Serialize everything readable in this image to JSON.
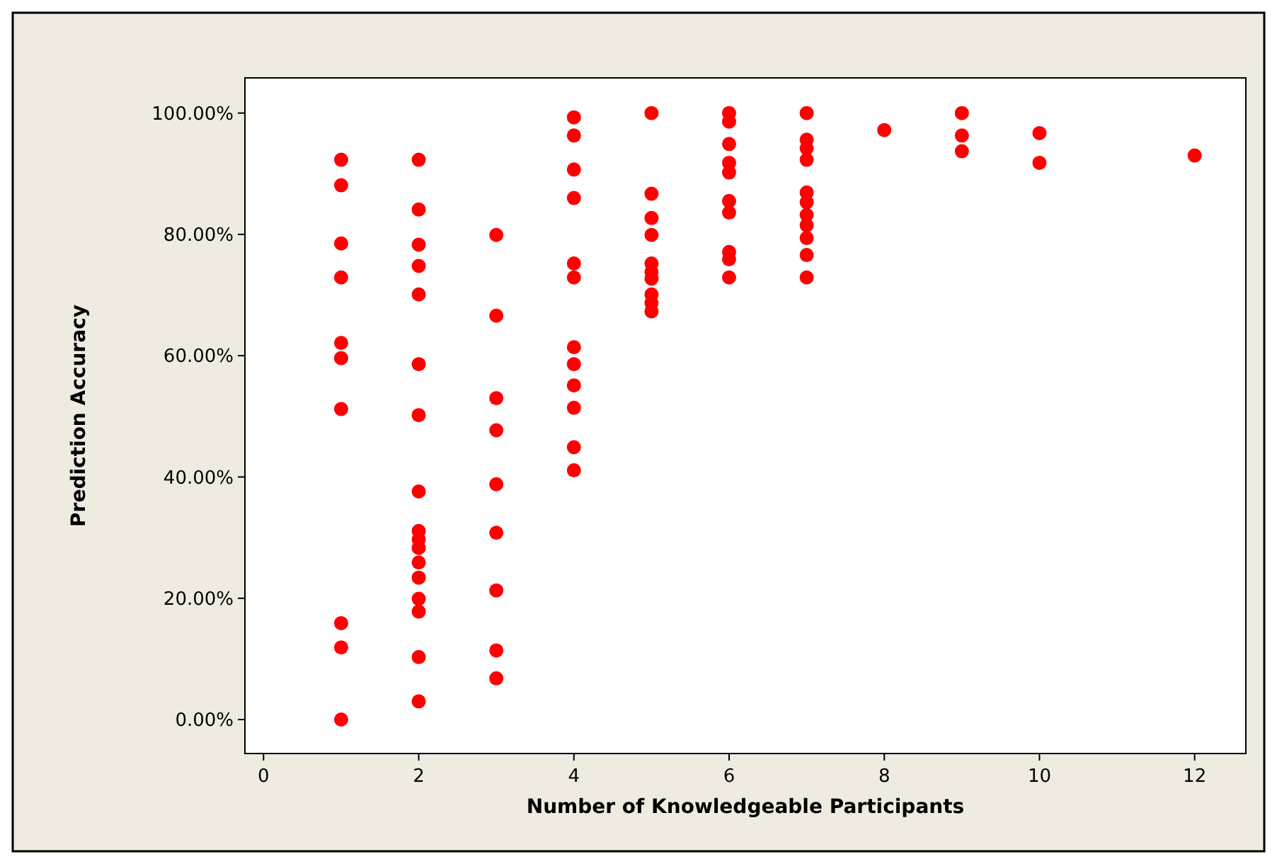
{
  "chart_data": {
    "type": "scatter",
    "xlabel": "Number of Knowledgeable Participants",
    "ylabel": "Prediction Accuracy",
    "marker": "circle",
    "grid": false,
    "xlim": [
      -0.24,
      12.66
    ],
    "xticks": [
      0,
      2,
      4,
      6,
      8,
      10,
      12
    ],
    "ylim": [
      -5.6,
      105.8
    ],
    "yticks": [
      {
        "value": 0,
        "label": "0.00%"
      },
      {
        "value": 20,
        "label": "20.00%"
      },
      {
        "value": 40,
        "label": "40.00%"
      },
      {
        "value": 60,
        "label": "60.00%"
      },
      {
        "value": 80,
        "label": "80.00%"
      },
      {
        "value": 100,
        "label": "100.00%"
      }
    ],
    "series": [
      {
        "color": "#ff0000",
        "x": [
          1,
          1,
          1,
          1,
          1,
          1,
          1,
          1,
          1,
          1,
          2,
          2,
          2,
          2,
          2,
          2,
          2,
          2,
          2,
          2,
          2,
          2,
          2,
          2,
          2,
          2,
          2,
          3,
          3,
          3,
          3,
          3,
          3,
          3,
          3,
          3,
          4,
          4,
          4,
          4,
          4,
          4,
          4,
          4,
          4,
          4,
          4,
          4,
          5,
          5,
          5,
          5,
          5,
          5,
          5,
          5,
          5,
          5,
          6,
          6,
          6,
          6,
          6,
          6,
          6,
          6,
          6,
          6,
          7,
          7,
          7,
          7,
          7,
          7,
          7,
          7,
          7,
          7,
          7,
          8,
          9,
          9,
          9,
          10,
          10,
          12
        ],
        "values": [
          92.3,
          88.1,
          78.5,
          72.9,
          62.1,
          59.6,
          51.2,
          15.9,
          11.9,
          0,
          92.3,
          84.1,
          78.3,
          74.8,
          70.1,
          58.6,
          50.2,
          37.6,
          31.1,
          29.7,
          28.3,
          25.9,
          23.4,
          19.9,
          17.8,
          10.3,
          3.0,
          79.9,
          66.6,
          53.0,
          47.7,
          38.8,
          30.8,
          21.3,
          11.4,
          6.8,
          99.3,
          96.3,
          90.7,
          86.0,
          75.2,
          72.9,
          61.4,
          58.6,
          55.1,
          51.4,
          44.9,
          41.1,
          100,
          86.7,
          82.7,
          79.9,
          75.2,
          73.8,
          72.7,
          70.1,
          68.7,
          67.3,
          100,
          98.6,
          94.9,
          91.8,
          90.2,
          85.5,
          83.6,
          77.1,
          75.9,
          72.9,
          100,
          95.6,
          94.2,
          92.3,
          86.9,
          85.3,
          83.2,
          81.5,
          79.4,
          76.6,
          72.9,
          97.2,
          100,
          96.3,
          93.7,
          96.7,
          91.8,
          93.0
        ]
      }
    ]
  }
}
